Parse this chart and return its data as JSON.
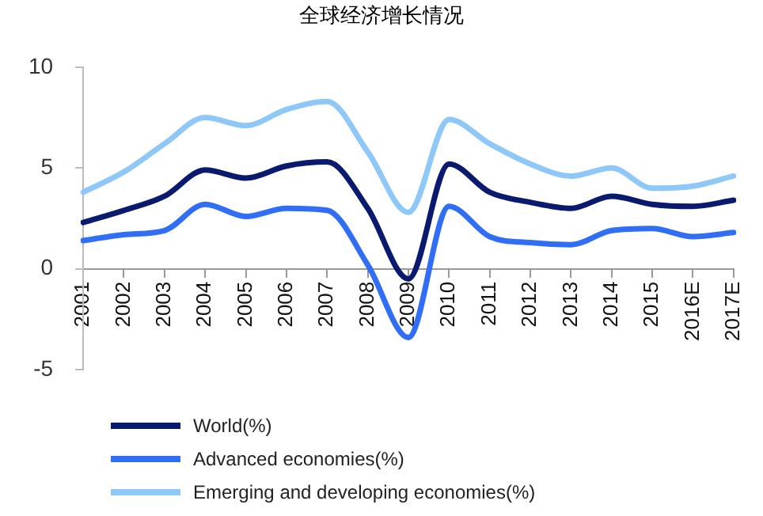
{
  "chart_data": {
    "type": "line",
    "title": "全球经济增长情况",
    "categories": [
      "2001",
      "2002",
      "2003",
      "2004",
      "2005",
      "2006",
      "2007",
      "2008",
      "2009",
      "2010",
      "2011",
      "2012",
      "2013",
      "2014",
      "2015",
      "2016E",
      "2017E"
    ],
    "series": [
      {
        "name": "World(%)",
        "color": "#0a1a6e",
        "values": [
          2.3,
          2.9,
          3.6,
          4.9,
          4.5,
          5.1,
          5.3,
          3.0,
          -0.5,
          5.2,
          3.8,
          3.3,
          3.0,
          3.6,
          3.2,
          3.1,
          3.4
        ]
      },
      {
        "name": "Advanced economies(%)",
        "color": "#2f6ef5",
        "values": [
          1.4,
          1.7,
          1.9,
          3.2,
          2.6,
          3.0,
          2.9,
          0.2,
          -3.4,
          3.1,
          1.6,
          1.3,
          1.2,
          1.9,
          2.0,
          1.6,
          1.8
        ]
      },
      {
        "name": "Emerging and developing economies(%)",
        "color": "#8ec8f8",
        "values": [
          3.8,
          4.8,
          6.2,
          7.5,
          7.1,
          7.9,
          8.3,
          5.8,
          2.8,
          7.4,
          6.2,
          5.2,
          4.6,
          5.0,
          4.0,
          4.1,
          4.6
        ]
      }
    ],
    "ylim": [
      -5,
      10
    ],
    "yticks": [
      -5,
      0,
      5,
      10
    ],
    "grid": false,
    "legend": "bottom",
    "marker": "none",
    "line_style": "solid"
  }
}
